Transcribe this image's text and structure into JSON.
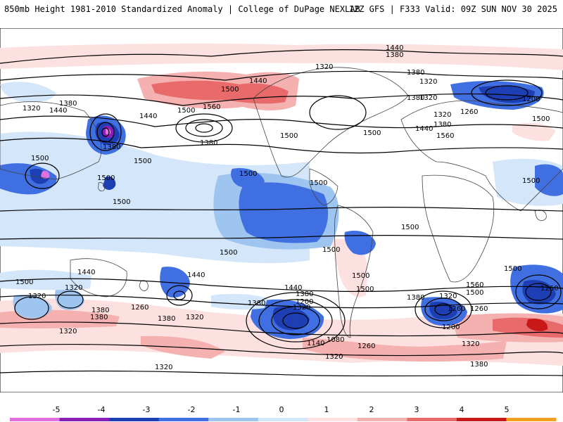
{
  "header": {
    "left_title": "850mb Height 1981-2010 Standardized Anomaly | College of DuPage NEXLAB",
    "right_title": "12Z GFS | F333 Valid: 09Z SUN NOV 30 2025"
  },
  "colorbar": {
    "ticks": [
      "-5",
      "-4",
      "-3",
      "-2",
      "-1",
      "0",
      "1",
      "2",
      "3",
      "4",
      "5"
    ],
    "colors": [
      "#e070e0",
      "#8a1fb8",
      "#1e3fb4",
      "#3f6fe0",
      "#9ec4f0",
      "#d4e6fa",
      "#fde0e0",
      "#f5b0b0",
      "#e86a6a",
      "#c81818",
      "#f3a020"
    ]
  },
  "contour_labels": [
    "1440",
    "1380",
    "1320",
    "1380",
    "1320",
    "1500",
    "1440",
    "1380",
    "1320",
    "1440",
    "1500",
    "1560",
    "1500",
    "1440",
    "1380",
    "1500",
    "1500",
    "1440",
    "1380",
    "1500",
    "1560",
    "1500",
    "1500",
    "1500",
    "1380",
    "1320",
    "1380",
    "1320",
    "1260",
    "1200",
    "1320",
    "1380",
    "1440",
    "1500",
    "1380",
    "1500",
    "1560",
    "1500",
    "1500",
    "1500",
    "1500",
    "1500",
    "1320",
    "1380",
    "1440",
    "1500",
    "1500",
    "1320",
    "1380",
    "1500",
    "1320",
    "1260",
    "1440",
    "1380",
    "1320",
    "1200",
    "1140",
    "1080",
    "1260",
    "1320",
    "1260",
    "1380",
    "1320",
    "1320",
    "1200",
    "1260",
    "1260",
    "1380",
    "1320",
    "1500"
  ]
}
